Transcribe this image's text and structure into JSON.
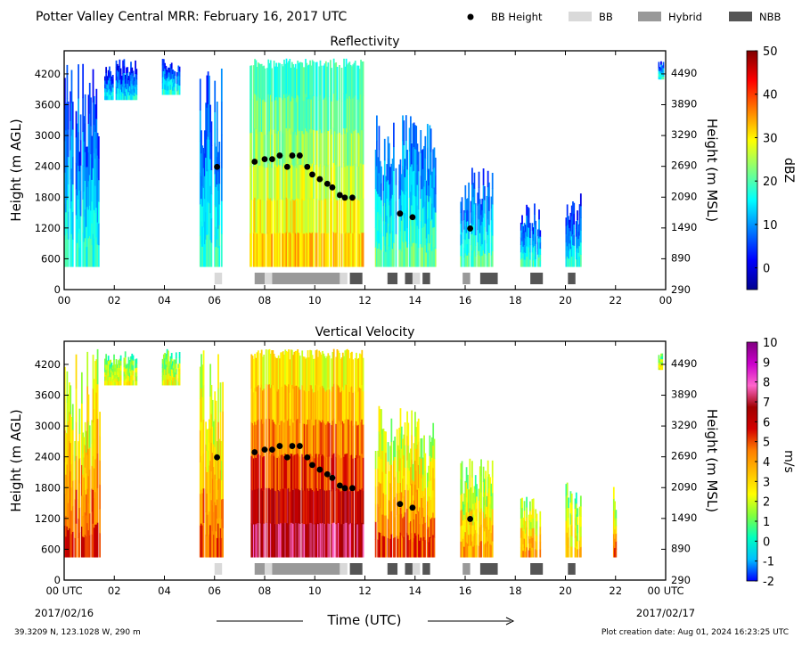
{
  "title": "Potter Valley Central MRR:  February 16, 2017 UTC",
  "legend": [
    {
      "label": "BB Height",
      "kind": "dot",
      "color": "#000000"
    },
    {
      "label": "BB",
      "kind": "swatch",
      "color": "#d9d9d9"
    },
    {
      "label": "Hybrid",
      "kind": "swatch",
      "color": "#999999"
    },
    {
      "label": "NBB",
      "kind": "swatch",
      "color": "#555555"
    }
  ],
  "xaxis": {
    "label": "Time (UTC)",
    "ticks_top": [
      "00",
      "02",
      "04",
      "06",
      "08",
      "10",
      "12",
      "14",
      "16",
      "18",
      "20",
      "22",
      "00"
    ],
    "ticks_bottom": [
      "00 UTC",
      "02",
      "04",
      "06",
      "08",
      "10",
      "12",
      "14",
      "16",
      "18",
      "20",
      "22",
      "00 UTC"
    ],
    "date_left": "2017/02/16",
    "date_right": "2017/02/17"
  },
  "footer": {
    "location": "39.3209 N, 123.1028 W, 290 m",
    "created": "Plot creation date: Aug 01, 2024 16:23:25 UTC"
  },
  "chart_data": [
    {
      "type": "heatmap",
      "title": "Reflectivity",
      "ylabel": "Height (m AGL)",
      "ylabel_right": "Height (m MSL)",
      "yticks": [
        0,
        600,
        1200,
        1800,
        2400,
        3000,
        3600,
        4200
      ],
      "yticks_right": [
        290,
        890,
        1490,
        2090,
        2690,
        3290,
        3890,
        4490
      ],
      "xlim": [
        0,
        24
      ],
      "ylim": [
        0,
        4650
      ],
      "colorbar": {
        "label": "dBZ",
        "min": -5,
        "max": 50,
        "ticks": [
          0,
          10,
          20,
          30,
          40,
          50
        ],
        "colors": [
          "#00008f",
          "#0000ff",
          "#007fff",
          "#00ffff",
          "#7fff7f",
          "#ffff00",
          "#ff7f00",
          "#ff0000",
          "#7f0000"
        ]
      },
      "echo_segments": [
        {
          "t0": 0.0,
          "t1": 1.4,
          "h0": 450,
          "h1": 4500,
          "level": 12
        },
        {
          "t0": 1.6,
          "t1": 2.9,
          "h0": 3700,
          "h1": 4500,
          "level": 10
        },
        {
          "t0": 3.9,
          "t1": 4.6,
          "h0": 3800,
          "h1": 4500,
          "level": 12
        },
        {
          "t0": 5.4,
          "t1": 6.3,
          "h0": 450,
          "h1": 4500,
          "level": 13
        },
        {
          "t0": 7.4,
          "t1": 11.9,
          "h0": 450,
          "h1": 4500,
          "level": 26
        },
        {
          "t0": 12.4,
          "t1": 14.8,
          "h0": 450,
          "h1": 3400,
          "level": 15
        },
        {
          "t0": 15.8,
          "t1": 17.1,
          "h0": 450,
          "h1": 2400,
          "level": 14
        },
        {
          "t0": 18.2,
          "t1": 19.0,
          "h0": 450,
          "h1": 1700,
          "level": 13
        },
        {
          "t0": 20.0,
          "t1": 20.6,
          "h0": 450,
          "h1": 1900,
          "level": 11
        },
        {
          "t0": 23.7,
          "t1": 23.9,
          "h0": 4100,
          "h1": 4450,
          "level": 12
        }
      ],
      "bb_height": [
        {
          "t": 6.1,
          "h": 2390
        },
        {
          "t": 7.6,
          "h": 2490
        },
        {
          "t": 8.0,
          "h": 2540
        },
        {
          "t": 8.3,
          "h": 2540
        },
        {
          "t": 8.6,
          "h": 2610
        },
        {
          "t": 8.9,
          "h": 2390
        },
        {
          "t": 9.1,
          "h": 2610
        },
        {
          "t": 9.4,
          "h": 2610
        },
        {
          "t": 9.7,
          "h": 2390
        },
        {
          "t": 9.9,
          "h": 2240
        },
        {
          "t": 10.2,
          "h": 2150
        },
        {
          "t": 10.5,
          "h": 2060
        },
        {
          "t": 10.7,
          "h": 1990
        },
        {
          "t": 11.0,
          "h": 1840
        },
        {
          "t": 11.2,
          "h": 1790
        },
        {
          "t": 11.5,
          "h": 1790
        },
        {
          "t": 13.4,
          "h": 1480
        },
        {
          "t": 13.9,
          "h": 1410
        },
        {
          "t": 16.2,
          "h": 1190
        }
      ],
      "bb_type_segments": [
        {
          "t0": 6.0,
          "t1": 6.3,
          "type": "BB"
        },
        {
          "t0": 7.6,
          "t1": 8.0,
          "type": "Hybrid"
        },
        {
          "t0": 8.0,
          "t1": 8.3,
          "type": "BB"
        },
        {
          "t0": 8.3,
          "t1": 11.0,
          "type": "Hybrid"
        },
        {
          "t0": 11.0,
          "t1": 11.3,
          "type": "BB"
        },
        {
          "t0": 11.4,
          "t1": 11.9,
          "type": "NBB"
        },
        {
          "t0": 12.9,
          "t1": 13.3,
          "type": "NBB"
        },
        {
          "t0": 13.6,
          "t1": 13.9,
          "type": "NBB"
        },
        {
          "t0": 13.9,
          "t1": 14.2,
          "type": "BB"
        },
        {
          "t0": 14.3,
          "t1": 14.6,
          "type": "NBB"
        },
        {
          "t0": 15.9,
          "t1": 16.2,
          "type": "Hybrid"
        },
        {
          "t0": 16.6,
          "t1": 17.3,
          "type": "NBB"
        },
        {
          "t0": 18.6,
          "t1": 19.1,
          "type": "NBB"
        },
        {
          "t0": 20.1,
          "t1": 20.4,
          "type": "NBB"
        }
      ]
    },
    {
      "type": "heatmap",
      "title": "Vertical Velocity",
      "ylabel": "Height (m AGL)",
      "ylabel_right": "Height (m MSL)",
      "yticks": [
        0,
        600,
        1200,
        1800,
        2400,
        3000,
        3600,
        4200
      ],
      "yticks_right": [
        290,
        890,
        1490,
        2090,
        2690,
        3290,
        3890,
        4490
      ],
      "xlim": [
        0,
        24
      ],
      "ylim": [
        0,
        4650
      ],
      "colorbar": {
        "label": "m/s",
        "min": -2,
        "max": 10,
        "ticks": [
          -2,
          -1,
          0,
          1,
          2,
          3,
          4,
          5,
          6,
          7,
          8,
          9,
          10
        ],
        "colors": [
          "#0000ff",
          "#00c0ff",
          "#00ffbf",
          "#7fff3f",
          "#ffff00",
          "#ffbf00",
          "#ff7f00",
          "#d40000",
          "#a00000",
          "#ff66cc",
          "#cc00cc",
          "#800080"
        ]
      },
      "echo_segments": [
        {
          "t0": 0.0,
          "t1": 1.4,
          "h0": 450,
          "h1": 4500,
          "level": 5.5
        },
        {
          "t0": 1.6,
          "t1": 2.9,
          "h0": 3800,
          "h1": 4500,
          "level": 2.5
        },
        {
          "t0": 3.9,
          "t1": 4.6,
          "h0": 3800,
          "h1": 4500,
          "level": 2.5
        },
        {
          "t0": 5.4,
          "t1": 6.3,
          "h0": 450,
          "h1": 4500,
          "level": 5
        },
        {
          "t0": 7.4,
          "t1": 11.9,
          "h0": 450,
          "h1": 4500,
          "level": 7
        },
        {
          "t0": 12.4,
          "t1": 14.8,
          "h0": 450,
          "h1": 3400,
          "level": 5
        },
        {
          "t0": 15.8,
          "t1": 17.1,
          "h0": 450,
          "h1": 2400,
          "level": 4
        },
        {
          "t0": 18.2,
          "t1": 19.0,
          "h0": 450,
          "h1": 1700,
          "level": 4
        },
        {
          "t0": 20.0,
          "t1": 20.6,
          "h0": 450,
          "h1": 1900,
          "level": 3
        },
        {
          "t0": 21.9,
          "t1": 22.0,
          "h0": 450,
          "h1": 1900,
          "level": 5
        },
        {
          "t0": 23.7,
          "t1": 23.9,
          "h0": 4100,
          "h1": 4450,
          "level": 2.5
        }
      ],
      "bb_height": [
        {
          "t": 6.1,
          "h": 2390
        },
        {
          "t": 7.6,
          "h": 2490
        },
        {
          "t": 8.0,
          "h": 2540
        },
        {
          "t": 8.3,
          "h": 2540
        },
        {
          "t": 8.6,
          "h": 2610
        },
        {
          "t": 8.9,
          "h": 2390
        },
        {
          "t": 9.1,
          "h": 2610
        },
        {
          "t": 9.4,
          "h": 2610
        },
        {
          "t": 9.7,
          "h": 2390
        },
        {
          "t": 9.9,
          "h": 2240
        },
        {
          "t": 10.2,
          "h": 2150
        },
        {
          "t": 10.5,
          "h": 2060
        },
        {
          "t": 10.7,
          "h": 1990
        },
        {
          "t": 11.0,
          "h": 1840
        },
        {
          "t": 11.2,
          "h": 1790
        },
        {
          "t": 11.5,
          "h": 1790
        },
        {
          "t": 13.4,
          "h": 1480
        },
        {
          "t": 13.9,
          "h": 1410
        },
        {
          "t": 16.2,
          "h": 1190
        }
      ],
      "bb_type_segments": [
        {
          "t0": 6.0,
          "t1": 6.3,
          "type": "BB"
        },
        {
          "t0": 7.6,
          "t1": 8.0,
          "type": "Hybrid"
        },
        {
          "t0": 8.0,
          "t1": 8.3,
          "type": "BB"
        },
        {
          "t0": 8.3,
          "t1": 11.0,
          "type": "Hybrid"
        },
        {
          "t0": 11.0,
          "t1": 11.3,
          "type": "BB"
        },
        {
          "t0": 11.4,
          "t1": 11.9,
          "type": "NBB"
        },
        {
          "t0": 12.9,
          "t1": 13.3,
          "type": "NBB"
        },
        {
          "t0": 13.6,
          "t1": 13.9,
          "type": "NBB"
        },
        {
          "t0": 13.9,
          "t1": 14.2,
          "type": "BB"
        },
        {
          "t0": 14.3,
          "t1": 14.6,
          "type": "NBB"
        },
        {
          "t0": 15.9,
          "t1": 16.2,
          "type": "Hybrid"
        },
        {
          "t0": 16.6,
          "t1": 17.3,
          "type": "NBB"
        },
        {
          "t0": 18.6,
          "t1": 19.1,
          "type": "NBB"
        },
        {
          "t0": 20.1,
          "t1": 20.4,
          "type": "NBB"
        }
      ]
    }
  ]
}
